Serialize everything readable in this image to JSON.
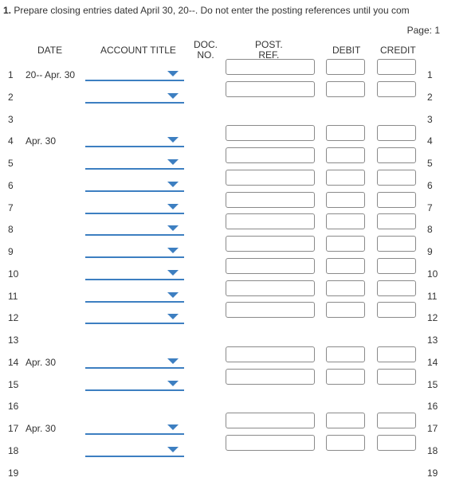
{
  "instruction": {
    "number": "1.",
    "text": "Prepare closing entries dated April 30, 20--. Do not enter the posting references until you com"
  },
  "page": {
    "label": "Page: 1"
  },
  "headers": {
    "date": "DATE",
    "account_title": "ACCOUNT TITLE",
    "doc_no_1": "DOC.",
    "doc_no_2": "NO.",
    "post_ref_1": "POST.",
    "post_ref_2": "REF.",
    "debit": "DEBIT",
    "credit": "CREDIT"
  },
  "rows": [
    {
      "line": "1",
      "date": "20-- Apr. 30",
      "inputs": true
    },
    {
      "line": "2",
      "date": "",
      "inputs": true
    },
    {
      "line": "3",
      "date": "",
      "inputs": false
    },
    {
      "line": "4",
      "date": "Apr. 30",
      "inputs": true
    },
    {
      "line": "5",
      "date": "",
      "inputs": true
    },
    {
      "line": "6",
      "date": "",
      "inputs": true
    },
    {
      "line": "7",
      "date": "",
      "inputs": true
    },
    {
      "line": "8",
      "date": "",
      "inputs": true
    },
    {
      "line": "9",
      "date": "",
      "inputs": true
    },
    {
      "line": "10",
      "date": "",
      "inputs": true
    },
    {
      "line": "11",
      "date": "",
      "inputs": true
    },
    {
      "line": "12",
      "date": "",
      "inputs": true
    },
    {
      "line": "13",
      "date": "",
      "inputs": false
    },
    {
      "line": "14",
      "date": "Apr. 30",
      "inputs": true
    },
    {
      "line": "15",
      "date": "",
      "inputs": true
    },
    {
      "line": "16",
      "date": "",
      "inputs": false
    },
    {
      "line": "17",
      "date": "Apr. 30",
      "inputs": true
    },
    {
      "line": "18",
      "date": "",
      "inputs": true
    },
    {
      "line": "19",
      "date": "",
      "inputs": false
    }
  ]
}
